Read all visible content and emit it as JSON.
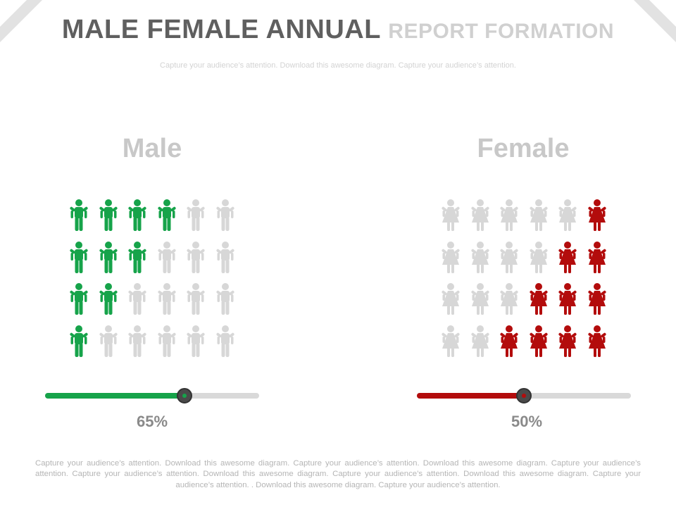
{
  "header": {
    "title_main": "MALE FEMALE ANNUAL",
    "title_sub": "REPORT FORMATION",
    "subtitle": "Capture your audience’s attention. Download this awesome diagram. Capture your audience’s attention."
  },
  "colors": {
    "male_active": "#16a34a",
    "female_active": "#b30c0c",
    "inactive": "#d7d7d7",
    "title_dark": "#5f5f5f",
    "title_light": "#d0d0d0"
  },
  "male": {
    "label": "Male",
    "icon": "male-person-icon",
    "percent_label": "65%",
    "percent": 65,
    "slider_fill_fraction": 0.65,
    "active_per_row": [
      4,
      3,
      2,
      1
    ],
    "active_side": "left",
    "columns": 6
  },
  "female": {
    "label": "Female",
    "icon": "female-person-icon",
    "percent_label": "50%",
    "percent": 50,
    "slider_fill_fraction": 0.5,
    "active_per_row": [
      1,
      2,
      3,
      4
    ],
    "active_side": "right",
    "columns": 6
  },
  "footer": {
    "text": "Capture your audience’s attention. Download this awesome diagram. Capture your audience’s attention. Download this awesome diagram. Capture your audience’s attention. Capture your audience’s attention. Download this awesome diagram. Capture your audience’s attention. Download this awesome diagram. Capture your audience’s attention. . Download this awesome diagram. Capture your audience’s attention."
  }
}
